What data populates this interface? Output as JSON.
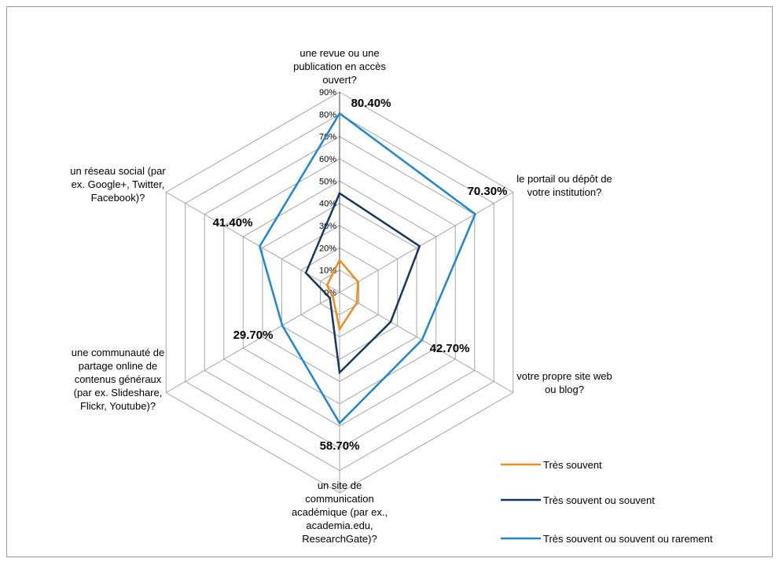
{
  "chart_data": {
    "type": "radar",
    "categories": [
      "une revue ou une publication en accès ouvert?",
      "le portail ou dépôt de votre institution?",
      "votre propre site web ou blog?",
      "un site de communication académique (par ex., academia.edu, ResearchGate)?",
      "une communauté de partage online de contenus généraux (par ex. Slideshare, Flickr, Youtube)?",
      "un réseau social (par ex. Google+, Twitter, Facebook)?"
    ],
    "category_lines": [
      [
        "une revue ou une",
        "publication en accès",
        "ouvert?"
      ],
      [
        "le portail ou dépôt de",
        "votre institution?"
      ],
      [
        "votre propre site web",
        "ou blog?"
      ],
      [
        "un site de",
        "communication",
        "académique (par ex.,",
        "academia.edu,",
        "ResearchGate)?"
      ],
      [
        "une communauté de",
        "partage online de",
        "contenus généraux",
        "(par ex. Slideshare,",
        "Flickr, Youtube)?"
      ],
      [
        "un réseau social (par",
        "ex. Google+, Twitter,",
        "Facebook)?"
      ]
    ],
    "rlim": [
      0,
      90
    ],
    "ticks": [
      "0%",
      "10%",
      "20%",
      "30%",
      "40%",
      "50%",
      "60%",
      "70%",
      "80%",
      "90%"
    ],
    "series": [
      {
        "name": "Très souvent",
        "color": "#f28a1c",
        "values": [
          14.5,
          9.5,
          9.0,
          16.5,
          3.5,
          6.5
        ]
      },
      {
        "name": "Très souvent ou souvent",
        "color": "#16375e",
        "values": [
          44.5,
          41.5,
          26.5,
          36.0,
          5.0,
          17.5
        ]
      },
      {
        "name": "Très souvent ou souvent ou rarement",
        "color": "#1f86d6",
        "values": [
          80.4,
          70.3,
          42.7,
          58.7,
          29.7,
          41.4
        ]
      }
    ],
    "data_labels": [
      "80.40%",
      "70.30%",
      "42.70%",
      "58.70%",
      "29.70%",
      "41.40%"
    ],
    "legend_position": "bottom-right"
  }
}
